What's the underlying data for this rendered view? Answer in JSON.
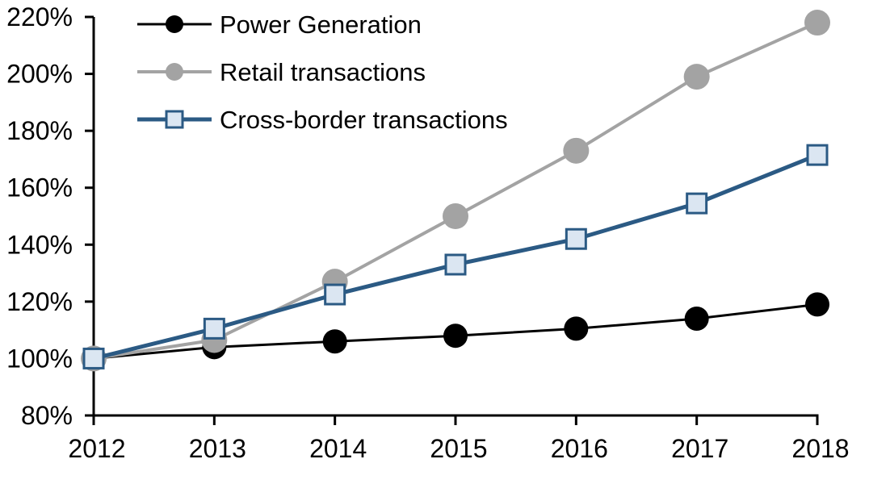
{
  "chart_data": {
    "type": "line",
    "title": "",
    "xlabel": "",
    "ylabel": "",
    "categories": [
      "2012",
      "2013",
      "2014",
      "2015",
      "2016",
      "2017",
      "2018"
    ],
    "series": [
      {
        "name": "Power Generation",
        "values": [
          100,
          104,
          106,
          108,
          110.5,
          114,
          119
        ],
        "color": "#000000",
        "line_width": 3,
        "marker": "circle",
        "marker_fill": "#000000",
        "marker_size": 15
      },
      {
        "name": "Retail transactions",
        "values": [
          100,
          106.5,
          127,
          150,
          173,
          199,
          218
        ],
        "color": "#a3a3a3",
        "line_width": 4,
        "marker": "circle",
        "marker_fill": "#a3a3a3",
        "marker_size": 16
      },
      {
        "name": "Cross-border transactions",
        "values": [
          100,
          110.5,
          122.5,
          133,
          142,
          154.5,
          171.5
        ],
        "color": "#2b5a84",
        "line_width": 5,
        "marker": "square",
        "marker_fill": "#dbe6f2",
        "marker_size": 13
      }
    ],
    "ylim": [
      80,
      220
    ],
    "ytick_step": 20,
    "ytick_values": [
      80,
      100,
      120,
      140,
      160,
      180,
      200,
      220
    ],
    "ytick_labels": [
      "80%",
      "100%",
      "120%",
      "140%",
      "160%",
      "180%",
      "200%",
      "220%"
    ],
    "xtick_labels": [
      "2012",
      "2013",
      "2014",
      "2015",
      "2016",
      "2017",
      "2018"
    ],
    "legend_position": "top-left",
    "legend_entries": [
      "Power Generation",
      "Retail transactions",
      "Cross-border transactions"
    ],
    "grid": false,
    "axis_color": "#000000",
    "background_color": "#ffffff"
  }
}
